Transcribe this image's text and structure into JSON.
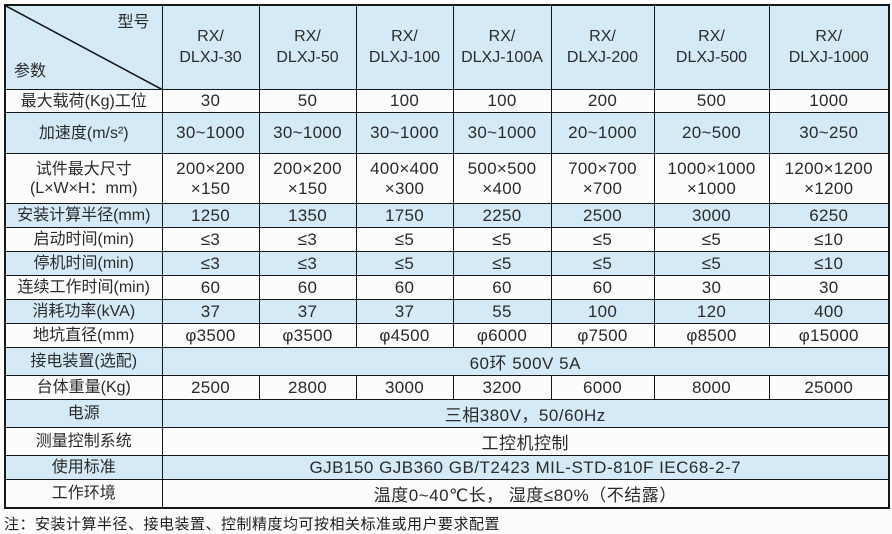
{
  "table": {
    "corner": {
      "top": "型号",
      "bottom": "参数"
    },
    "columns": [
      "RX/\nDLXJ-30",
      "RX/\nDLXJ-50",
      "RX/\nDLXJ-100",
      "RX/\nDLXJ-100A",
      "RX/\nDLXJ-200",
      "RX/\nDLXJ-500",
      "RX/\nDLXJ-1000"
    ],
    "rows": [
      {
        "label": "最大载荷(Kg)工位",
        "values": [
          "30",
          "50",
          "100",
          "100",
          "200",
          "500",
          "1000"
        ]
      },
      {
        "label": "加速度(m/s²)",
        "values": [
          "30~1000",
          "30~1000",
          "30~1000",
          "30~1000",
          "20~1000",
          "20~500",
          "30~250"
        ]
      },
      {
        "label": "试件最大尺寸\n(L×W×H：mm)",
        "values": [
          "200×200\n×150",
          "200×200\n×150",
          "400×400\n×300",
          "500×500\n×400",
          "700×700\n×700",
          "1000×1000\n×1000",
          "1200×1200\n×1200"
        ]
      },
      {
        "label": "安装计算半径(mm)",
        "values": [
          "1250",
          "1350",
          "1750",
          "2250",
          "2500",
          "3000",
          "6250"
        ]
      },
      {
        "label": "启动时间(min)",
        "values": [
          "≤3",
          "≤3",
          "≤5",
          "≤5",
          "≤5",
          "≤5",
          "≤10"
        ]
      },
      {
        "label": "停机时间(min)",
        "values": [
          "≤3",
          "≤3",
          "≤5",
          "≤5",
          "≤5",
          "≤5",
          "≤10"
        ]
      },
      {
        "label": "连续工作时间(min)",
        "values": [
          "60",
          "60",
          "60",
          "60",
          "60",
          "30",
          "30"
        ]
      },
      {
        "label": "消耗功率(kVA)",
        "values": [
          "37",
          "37",
          "37",
          "55",
          "100",
          "120",
          "400"
        ]
      },
      {
        "label": "地坑直径(mm)",
        "values": [
          "φ3500",
          "φ3500",
          "φ4500",
          "φ6000",
          "φ7500",
          "φ8500",
          "φ15000"
        ]
      },
      {
        "label": "接电装置(选配)",
        "merged": "60环  500V  5A"
      },
      {
        "label": "台体重量(Kg)",
        "values": [
          "2500",
          "2800",
          "3000",
          "3200",
          "6000",
          "8000",
          "25000"
        ]
      },
      {
        "label": "电源",
        "merged": "三相380V，50/60Hz"
      },
      {
        "label": "测量控制系统",
        "merged": "工控机控制"
      },
      {
        "label": "使用标准",
        "merged": "GJB150  GJB360 GB/T2423  MIL-STD-810F  IEC68-2-7"
      },
      {
        "label": "工作环境",
        "merged": "温度0~40℃长， 湿度≤80%（不结露）"
      }
    ]
  },
  "note": "注：安装计算半径、接电装置、控制精度均可按相关标准或用户要求配置",
  "colors": {
    "stripe_blue": "#d4eaf6",
    "border": "#161616",
    "text": "#2b2b2b",
    "background": "#fcfcfc"
  }
}
